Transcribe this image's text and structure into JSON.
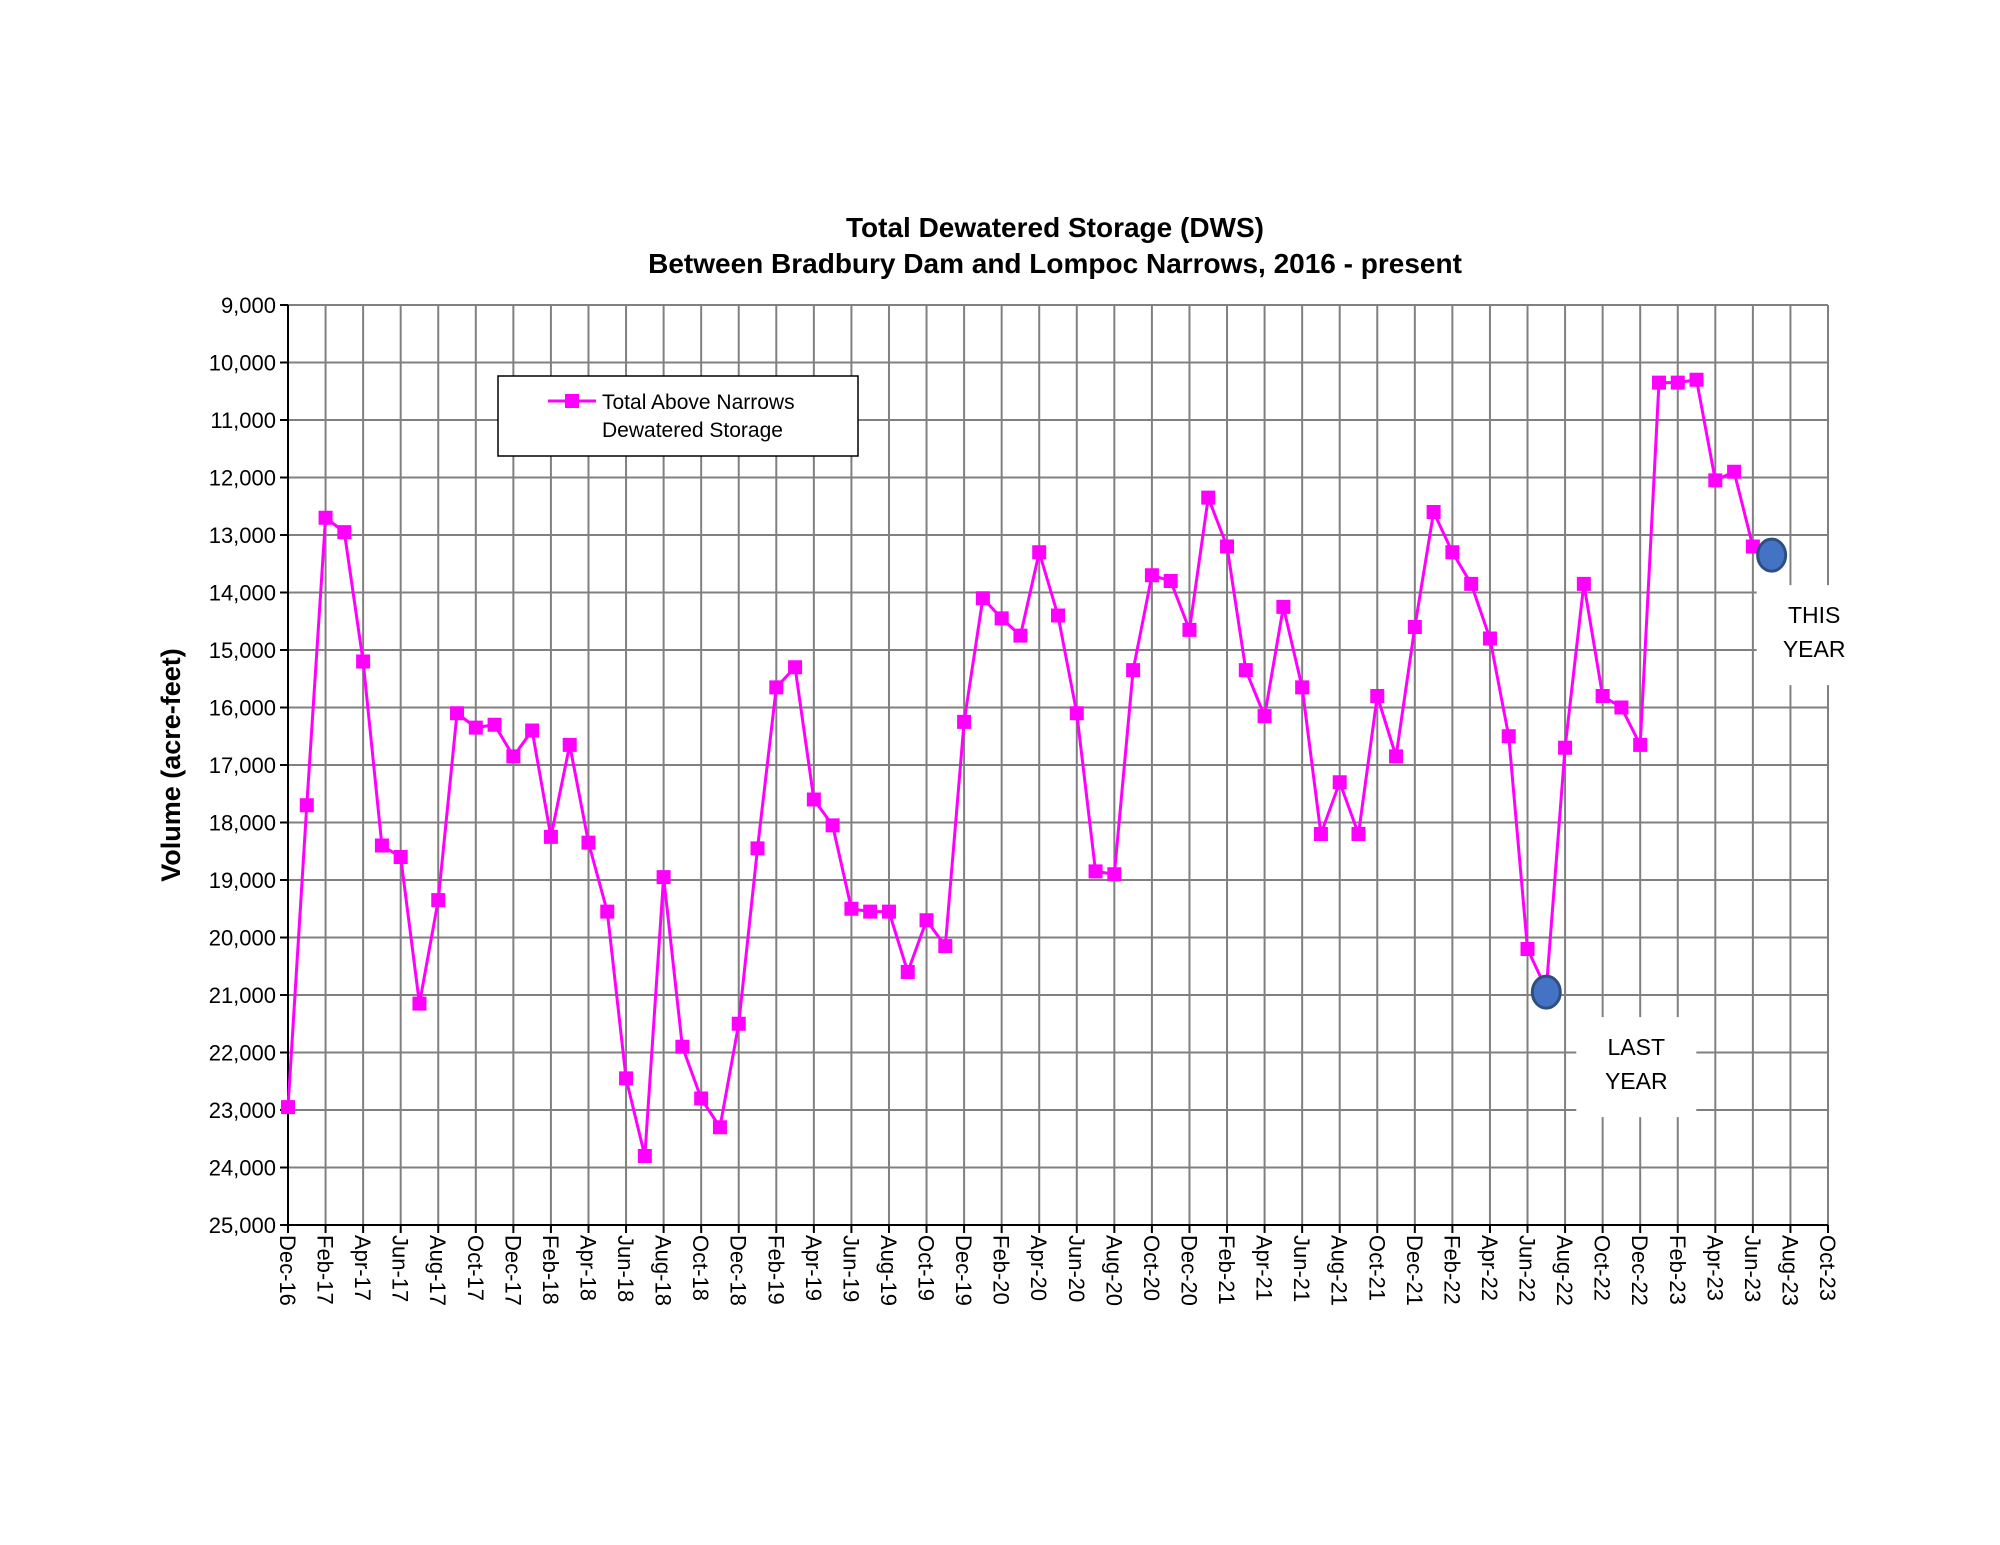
{
  "chart_data": {
    "type": "line",
    "title": "Total Dewatered Storage (DWS)",
    "subtitle": "Between Bradbury Dam and Lompoc Narrows, 2016 - present",
    "ylabel": "Volume (acre-feet)",
    "xlabel": "",
    "ylim": [
      9000,
      25000
    ],
    "y_inverted": true,
    "y_ticks": [
      "9,000",
      "10,000",
      "11,000",
      "12,000",
      "13,000",
      "14,000",
      "15,000",
      "16,000",
      "17,000",
      "18,000",
      "19,000",
      "20,000",
      "21,000",
      "22,000",
      "23,000",
      "24,000",
      "25,000"
    ],
    "x_tick_labels": [
      "Dec-16",
      "Feb-17",
      "Apr-17",
      "Jun-17",
      "Aug-17",
      "Oct-17",
      "Dec-17",
      "Feb-18",
      "Apr-18",
      "Jun-18",
      "Aug-18",
      "Oct-18",
      "Dec-18",
      "Feb-19",
      "Apr-19",
      "Jun-19",
      "Aug-19",
      "Oct-19",
      "Dec-19",
      "Feb-20",
      "Apr-20",
      "Jun-20",
      "Aug-20",
      "Oct-20",
      "Dec-20",
      "Feb-21",
      "Apr-21",
      "Jun-21",
      "Aug-21",
      "Oct-21",
      "Dec-21",
      "Feb-22",
      "Apr-22",
      "Jun-22",
      "Aug-22",
      "Oct-22",
      "Dec-22",
      "Feb-23",
      "Apr-23",
      "Jun-23",
      "Aug-23",
      "Oct-23"
    ],
    "grid": true,
    "legend_position": "top-left",
    "series": [
      {
        "name": "Total Above Narrows Dewatered Storage",
        "color": "#ff00ff",
        "marker": "square",
        "x": [
          "Dec-16",
          "Jan-17",
          "Feb-17",
          "Mar-17",
          "Apr-17",
          "May-17",
          "Jun-17",
          "Jul-17",
          "Aug-17",
          "Sep-17",
          "Oct-17",
          "Nov-17",
          "Dec-17",
          "Jan-18",
          "Feb-18",
          "Mar-18",
          "Apr-18",
          "May-18",
          "Jun-18",
          "Jul-18",
          "Aug-18",
          "Sep-18",
          "Oct-18",
          "Nov-18",
          "Dec-18",
          "Jan-19",
          "Feb-19",
          "Mar-19",
          "Apr-19",
          "May-19",
          "Jun-19",
          "Jul-19",
          "Aug-19",
          "Sep-19",
          "Oct-19",
          "Nov-19",
          "Dec-19",
          "Jan-20",
          "Feb-20",
          "Mar-20",
          "Apr-20",
          "May-20",
          "Jun-20",
          "Jul-20",
          "Aug-20",
          "Sep-20",
          "Oct-20",
          "Nov-20",
          "Dec-20",
          "Jan-21",
          "Feb-21",
          "Mar-21",
          "Apr-21",
          "May-21",
          "Jun-21",
          "Jul-21",
          "Aug-21",
          "Sep-21",
          "Oct-21",
          "Nov-21",
          "Dec-21",
          "Jan-22",
          "Feb-22",
          "Mar-22",
          "Apr-22",
          "May-22",
          "Jun-22",
          "Jul-22",
          "Aug-22",
          "Sep-22",
          "Oct-22",
          "Nov-22",
          "Dec-22",
          "Jan-23",
          "Feb-23",
          "Mar-23",
          "Apr-23",
          "May-23",
          "Jun-23"
        ],
        "values": [
          22950,
          17700,
          12700,
          12950,
          15200,
          18400,
          18600,
          21150,
          19350,
          16100,
          16350,
          16300,
          16850,
          16400,
          18250,
          16650,
          18350,
          19550,
          22450,
          23800,
          18950,
          21900,
          22800,
          23300,
          21500,
          18450,
          15650,
          15300,
          17600,
          18050,
          19500,
          19550,
          19550,
          20600,
          19700,
          20150,
          16250,
          14100,
          14450,
          14750,
          13300,
          14400,
          16100,
          18850,
          18900,
          15350,
          13700,
          13800,
          14650,
          12350,
          13200,
          15350,
          16150,
          14250,
          15650,
          18200,
          17300,
          18200,
          15800,
          16850,
          14600,
          12600,
          13300,
          13850,
          14800,
          16500,
          20200,
          20900,
          16700,
          13850,
          15800,
          16000,
          16650,
          10350,
          10350,
          10300,
          12050,
          11900,
          13200
        ]
      }
    ],
    "annotations": [
      {
        "label_lines": [
          "LAST",
          "YEAR"
        ],
        "x": "Jul-22",
        "y": 20950,
        "color": "#4472c4"
      },
      {
        "label_lines": [
          "THIS",
          "YEAR"
        ],
        "x": "Jul-23",
        "y": 13350,
        "color": "#4472c4"
      }
    ]
  }
}
